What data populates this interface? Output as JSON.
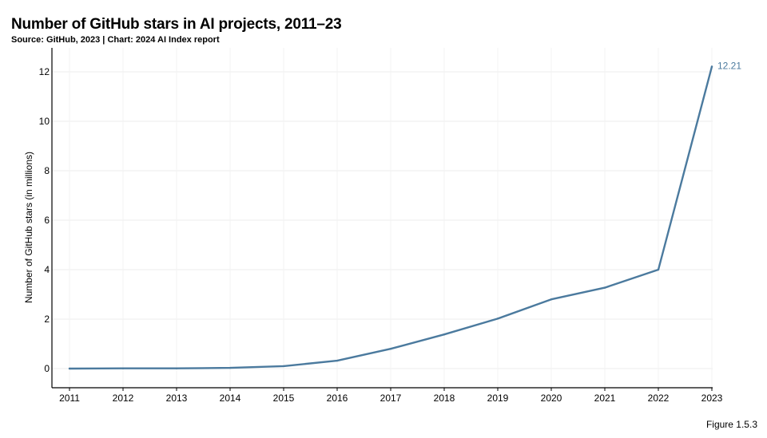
{
  "chart_data": {
    "type": "line",
    "title": "Number of GitHub stars in AI projects, 2011–23",
    "subtitle": "Source: GitHub, 2023 | Chart: 2024 AI Index report",
    "xlabel": "",
    "ylabel": "Number of GitHub stars (in millions)",
    "x": [
      "2011",
      "2012",
      "2013",
      "2014",
      "2015",
      "2016",
      "2017",
      "2018",
      "2019",
      "2020",
      "2021",
      "2022",
      "2023"
    ],
    "series": [
      {
        "values": [
          0.0,
          0.01,
          0.01,
          0.03,
          0.1,
          0.32,
          0.8,
          1.38,
          2.02,
          2.8,
          3.27,
          4.0,
          12.21
        ]
      }
    ],
    "yticks": [
      "0",
      "2",
      "4",
      "6",
      "8",
      "10",
      "12"
    ],
    "ylim": [
      0,
      12.8
    ],
    "end_label": "12.21",
    "grid": true,
    "line_color": "#4b7a9e"
  },
  "figure_label": "Figure 1.5.3"
}
